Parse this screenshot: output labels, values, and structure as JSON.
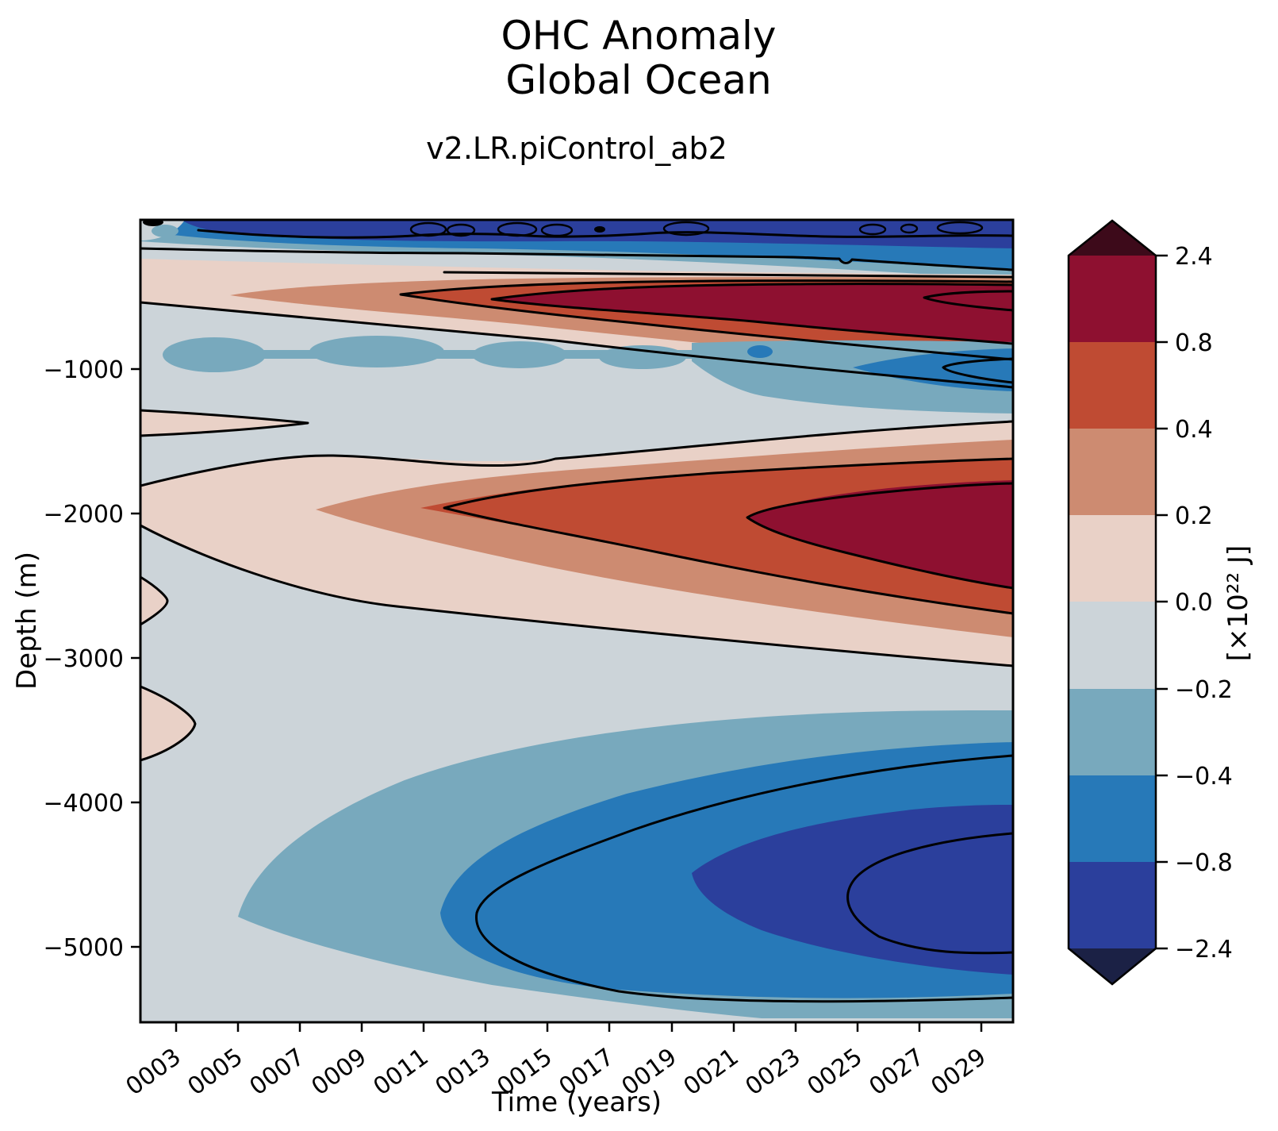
{
  "figure": {
    "suptitle_line1": "OHC Anomaly",
    "suptitle_line2": "Global Ocean",
    "subtitle": "v2.LR.piControl_ab2"
  },
  "axes": {
    "xlabel": "Time (years)",
    "ylabel": "Depth (m)",
    "x_ticks": [
      "0003",
      "0005",
      "0007",
      "0009",
      "0011",
      "0013",
      "0015",
      "0017",
      "0019",
      "0021",
      "0023",
      "0025",
      "0027",
      "0029"
    ],
    "y_ticks": [
      "−1000",
      "−2000",
      "−3000",
      "−4000",
      "−5000"
    ]
  },
  "colorbar": {
    "label": "[×10²² J]",
    "tick_labels": [
      "2.4",
      "0.8",
      "0.4",
      "0.2",
      "0.0",
      "−0.2",
      "−0.4",
      "−0.8",
      "−2.4"
    ]
  },
  "chart_data": {
    "type": "heatmap",
    "subtype": "filled_contour_time_depth_section",
    "title": "OHC Anomaly — Global Ocean",
    "run_label": "v2.LR.piControl_ab2",
    "xlabel": "Time (years)",
    "ylabel": "Depth (m)",
    "x_range_years": [
      2,
      30
    ],
    "y_range_m": [
      0,
      -5450
    ],
    "x_tick_years": [
      3,
      5,
      7,
      9,
      11,
      13,
      15,
      17,
      19,
      21,
      23,
      25,
      27,
      29
    ],
    "y_tick_m": [
      -1000,
      -2000,
      -3000,
      -4000,
      -5000
    ],
    "contour_levels_1e22J": [
      -2.4,
      -0.8,
      -0.4,
      -0.2,
      0.0,
      0.2,
      0.4,
      0.8,
      2.4
    ],
    "colorbar_units": "10^22 J",
    "colors": {
      "over": "#3d0a1a",
      "r3": "#8e1030",
      "r2": "#bf4b33",
      "r1": "#cd8b71",
      "r0": "#e9d1c7",
      "b0": "#ccd4d9",
      "b1": "#78a9bd",
      "b2": "#2779b8",
      "b3": "#2b3f9c",
      "under": "#1b2145"
    },
    "features": [
      {
        "region": "surface layer ~0–200 m",
        "anomaly_1e22J": "below −0.8, locally below −2.4",
        "behavior": "strong cooling band across all years from ~year 3, closed −2.4 contour cells near surface"
      },
      {
        "region": "upper ocean ~300–800 m",
        "anomaly_1e22J": "+0.2 rising above +0.8",
        "behavior": "warm band that intensifies and thickens with time, dark-red core after ~year 13"
      },
      {
        "region": "intermediate ~900–1400 m",
        "anomaly_1e22J": "−0.2 to −0.8",
        "behavior": "weak cool band, strongest (below −0.8) near years 25–29"
      },
      {
        "region": "deep ~1500–2900 m",
        "anomaly_1e22J": "+0.2 rising above +0.8",
        "behavior": "large warm wedge growing rightward, dark-red core beyond ~year 17 centered near 2000 m"
      },
      {
        "region": "abyssal ~3500–5400 m",
        "anomaly_1e22J": "−0.2 falling below −0.8",
        "behavior": "large cooling blob growing after ~year 9, darkest core near years 23–29 at 4000–5000 m"
      },
      {
        "region": "left margin (years 2–4)",
        "anomaly_1e22J": "≈ 0",
        "behavior": "near-neutral pale shading with small ±0.2 pockets at left edge"
      }
    ],
    "legend_position": "right colorbar, vertical, with over/under triangular extensions"
  }
}
